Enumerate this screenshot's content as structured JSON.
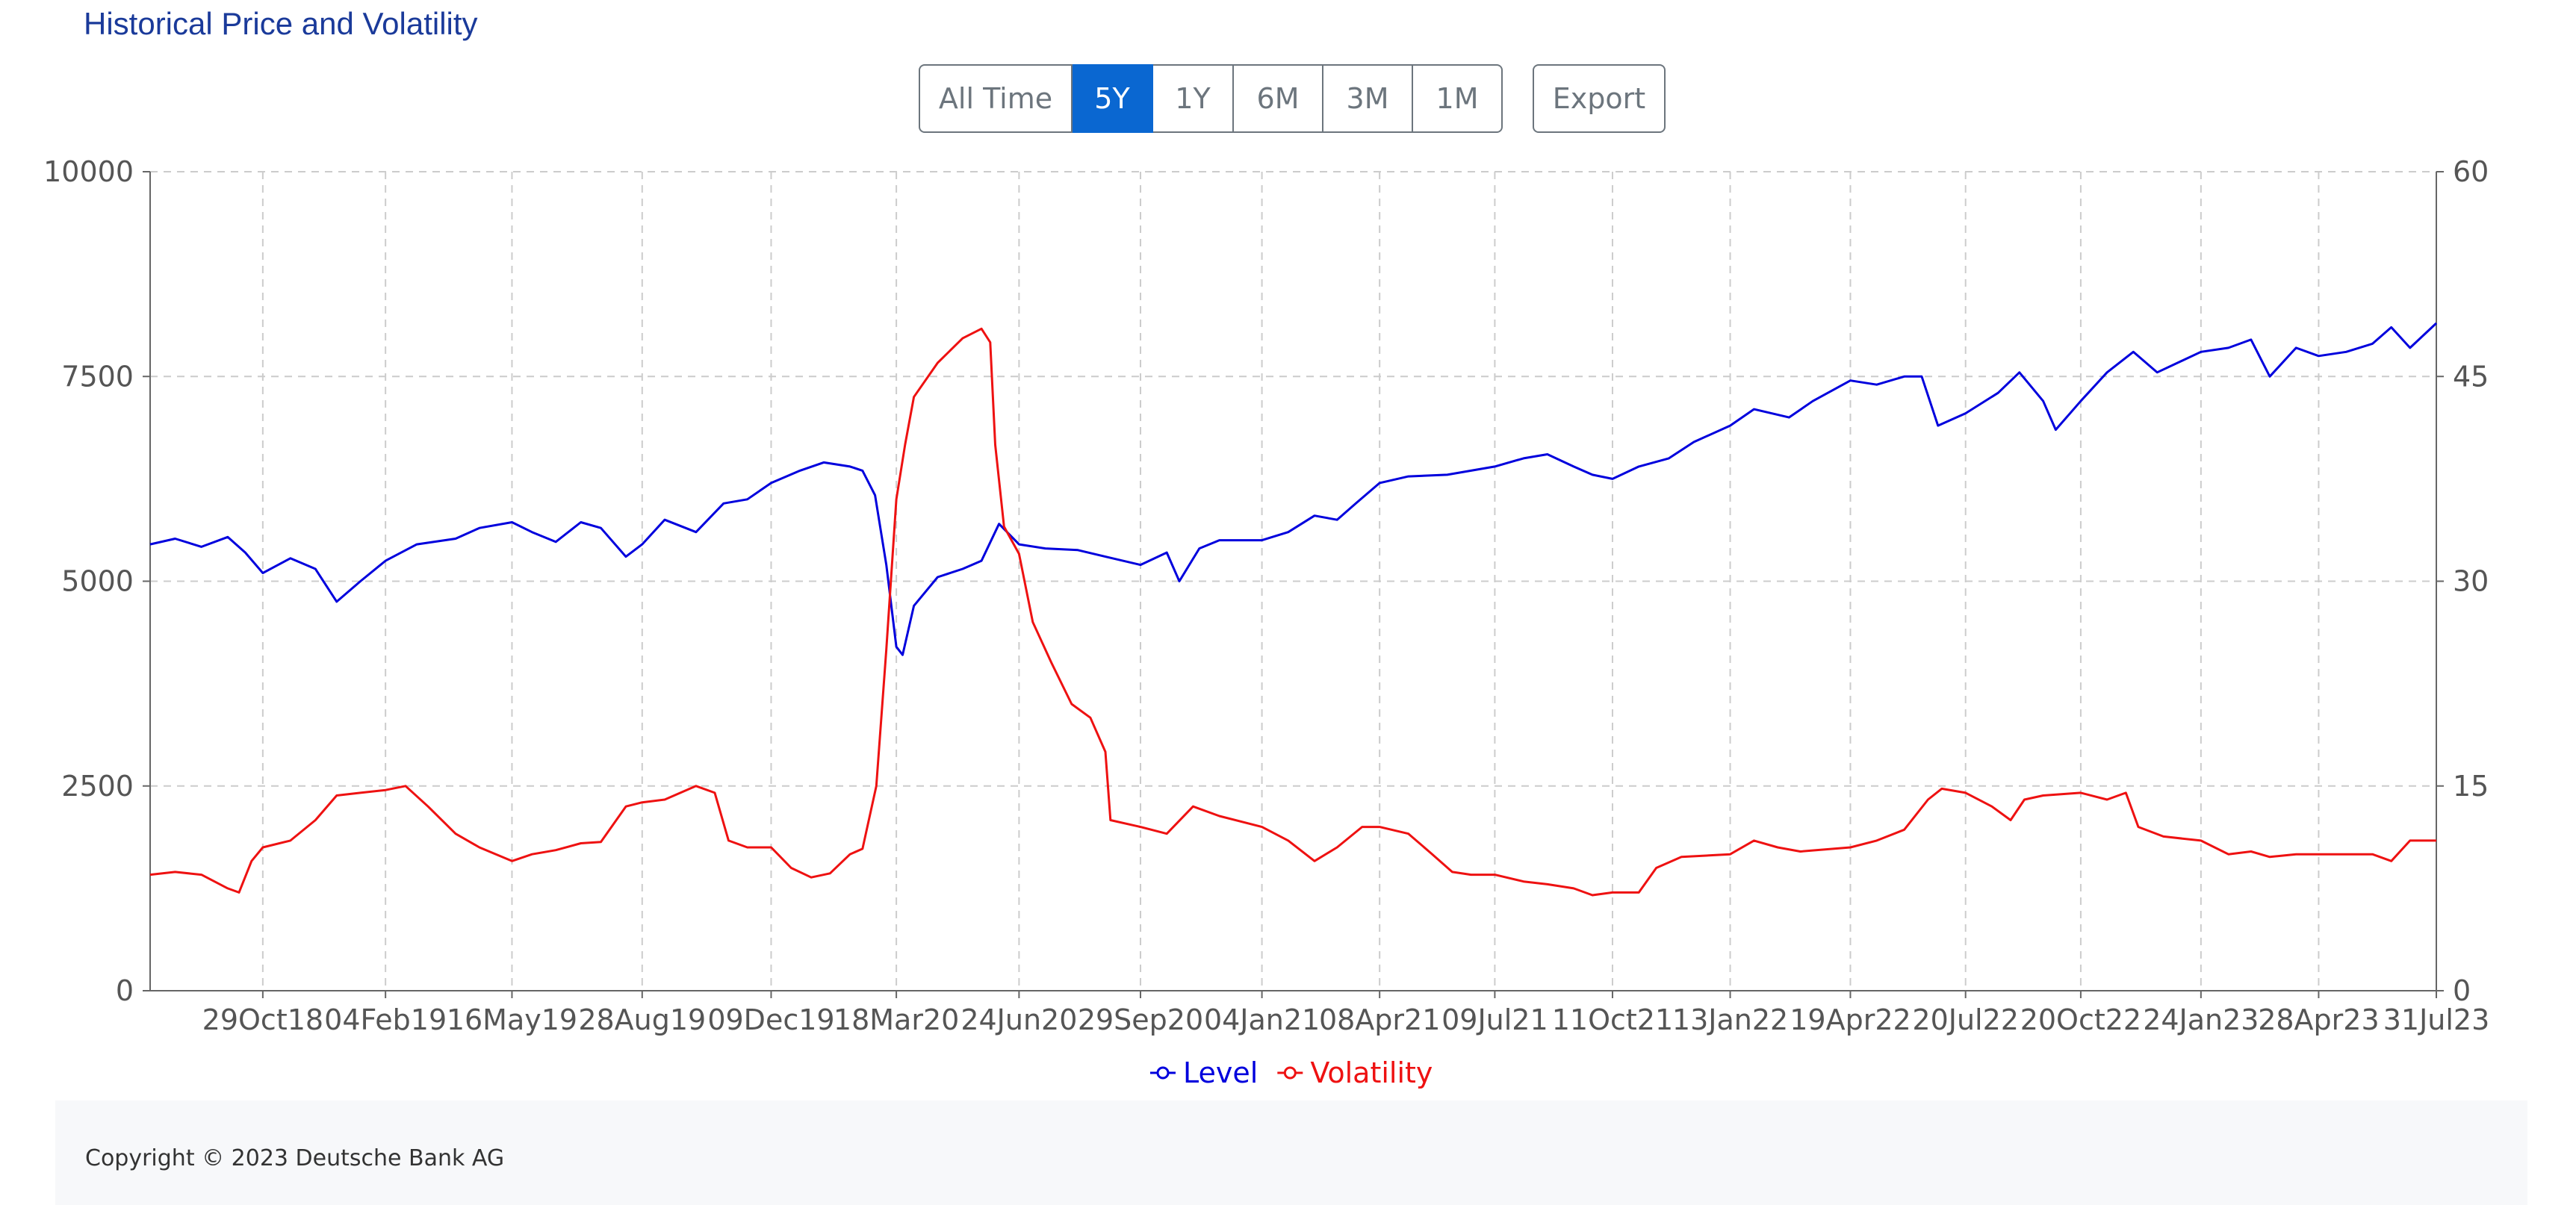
{
  "title": "Historical Price and Volatility",
  "range_buttons": [
    {
      "label": "All Time",
      "active": false
    },
    {
      "label": "5Y",
      "active": true
    },
    {
      "label": "1Y",
      "active": false
    },
    {
      "label": "6M",
      "active": false
    },
    {
      "label": "3M",
      "active": false
    },
    {
      "label": "1M",
      "active": false
    }
  ],
  "export_label": "Export",
  "copyright": "Copyright © 2023 Deutsche Bank AG",
  "colors": {
    "level": "#0000dd",
    "volatility": "#ee1111",
    "accent": "#0a67d1"
  },
  "chart_data": {
    "type": "line",
    "x_ticks": [
      "29Oct18",
      "04Feb19",
      "16May19",
      "28Aug19",
      "09Dec19",
      "18Mar20",
      "24Jun20",
      "29Sep20",
      "04Jan21",
      "08Apr21",
      "09Jul21",
      "11Oct21",
      "13Jan22",
      "19Apr22",
      "20Jul22",
      "20Oct22",
      "24Jan23",
      "28Apr23",
      "31Jul23"
    ],
    "x_range": [
      "2018-07-31",
      "2023-07-31"
    ],
    "y_left": {
      "ticks": [
        0,
        2500,
        5000,
        7500,
        10000
      ],
      "range": [
        0,
        10000
      ]
    },
    "y_right": {
      "ticks": [
        0,
        15,
        30,
        45,
        60
      ],
      "range": [
        0,
        60
      ]
    },
    "grid": true,
    "legend_position": "bottom-center",
    "series": [
      {
        "name": "Level",
        "axis": "left",
        "points": [
          [
            "2018-07-31",
            5450
          ],
          [
            "2018-08-20",
            5520
          ],
          [
            "2018-09-10",
            5420
          ],
          [
            "2018-10-01",
            5540
          ],
          [
            "2018-10-15",
            5350
          ],
          [
            "2018-10-29",
            5100
          ],
          [
            "2018-11-20",
            5280
          ],
          [
            "2018-12-10",
            5150
          ],
          [
            "2018-12-27",
            4750
          ],
          [
            "2019-01-15",
            5000
          ],
          [
            "2019-02-04",
            5250
          ],
          [
            "2019-03-01",
            5450
          ],
          [
            "2019-04-01",
            5520
          ],
          [
            "2019-04-20",
            5650
          ],
          [
            "2019-05-16",
            5720
          ],
          [
            "2019-06-01",
            5600
          ],
          [
            "2019-06-20",
            5480
          ],
          [
            "2019-07-10",
            5720
          ],
          [
            "2019-07-26",
            5650
          ],
          [
            "2019-08-15",
            5300
          ],
          [
            "2019-08-28",
            5450
          ],
          [
            "2019-09-15",
            5750
          ],
          [
            "2019-10-10",
            5600
          ],
          [
            "2019-11-01",
            5950
          ],
          [
            "2019-11-20",
            6000
          ],
          [
            "2019-12-09",
            6200
          ],
          [
            "2020-01-01",
            6350
          ],
          [
            "2020-01-20",
            6450
          ],
          [
            "2020-02-10",
            6400
          ],
          [
            "2020-02-20",
            6350
          ],
          [
            "2020-03-01",
            6050
          ],
          [
            "2020-03-10",
            5200
          ],
          [
            "2020-03-18",
            4200
          ],
          [
            "2020-03-23",
            4100
          ],
          [
            "2020-04-01",
            4700
          ],
          [
            "2020-04-20",
            5050
          ],
          [
            "2020-05-10",
            5150
          ],
          [
            "2020-05-25",
            5250
          ],
          [
            "2020-06-08",
            5700
          ],
          [
            "2020-06-24",
            5450
          ],
          [
            "2020-07-15",
            5400
          ],
          [
            "2020-08-10",
            5380
          ],
          [
            "2020-09-01",
            5300
          ],
          [
            "2020-09-29",
            5200
          ],
          [
            "2020-10-20",
            5350
          ],
          [
            "2020-10-30",
            5000
          ],
          [
            "2020-11-15",
            5400
          ],
          [
            "2020-12-01",
            5500
          ],
          [
            "2021-01-04",
            5500
          ],
          [
            "2021-01-25",
            5600
          ],
          [
            "2021-02-15",
            5800
          ],
          [
            "2021-03-05",
            5750
          ],
          [
            "2021-03-20",
            5950
          ],
          [
            "2021-04-08",
            6200
          ],
          [
            "2021-05-01",
            6280
          ],
          [
            "2021-06-01",
            6300
          ],
          [
            "2021-07-09",
            6400
          ],
          [
            "2021-08-01",
            6500
          ],
          [
            "2021-08-20",
            6550
          ],
          [
            "2021-09-10",
            6400
          ],
          [
            "2021-09-25",
            6300
          ],
          [
            "2021-10-11",
            6250
          ],
          [
            "2021-11-01",
            6400
          ],
          [
            "2021-11-25",
            6500
          ],
          [
            "2021-12-15",
            6700
          ],
          [
            "2022-01-13",
            6900
          ],
          [
            "2022-02-01",
            7100
          ],
          [
            "2022-03-01",
            7000
          ],
          [
            "2022-03-20",
            7200
          ],
          [
            "2022-04-19",
            7450
          ],
          [
            "2022-05-10",
            7400
          ],
          [
            "2022-06-01",
            7500
          ],
          [
            "2022-06-15",
            7500
          ],
          [
            "2022-06-28",
            6900
          ],
          [
            "2022-07-20",
            7050
          ],
          [
            "2022-08-15",
            7300
          ],
          [
            "2022-09-01",
            7550
          ],
          [
            "2022-09-20",
            7200
          ],
          [
            "2022-09-30",
            6850
          ],
          [
            "2022-10-20",
            7200
          ],
          [
            "2022-11-10",
            7550
          ],
          [
            "2022-12-01",
            7800
          ],
          [
            "2022-12-20",
            7550
          ],
          [
            "2023-01-24",
            7800
          ],
          [
            "2023-02-15",
            7850
          ],
          [
            "2023-03-05",
            7950
          ],
          [
            "2023-03-20",
            7500
          ],
          [
            "2023-04-10",
            7850
          ],
          [
            "2023-04-28",
            7750
          ],
          [
            "2023-05-20",
            7800
          ],
          [
            "2023-06-10",
            7900
          ],
          [
            "2023-06-25",
            8100
          ],
          [
            "2023-07-10",
            7850
          ],
          [
            "2023-07-31",
            8150
          ]
        ]
      },
      {
        "name": "Volatility",
        "axis": "right",
        "points": [
          [
            "2018-07-31",
            8.5
          ],
          [
            "2018-08-20",
            8.7
          ],
          [
            "2018-09-10",
            8.5
          ],
          [
            "2018-10-01",
            7.5
          ],
          [
            "2018-10-10",
            7.2
          ],
          [
            "2018-10-20",
            9.5
          ],
          [
            "2018-10-29",
            10.5
          ],
          [
            "2018-11-20",
            11.0
          ],
          [
            "2018-12-10",
            12.5
          ],
          [
            "2018-12-27",
            14.3
          ],
          [
            "2019-01-15",
            14.5
          ],
          [
            "2019-02-04",
            14.7
          ],
          [
            "2019-02-20",
            15.0
          ],
          [
            "2019-03-10",
            13.5
          ],
          [
            "2019-04-01",
            11.5
          ],
          [
            "2019-04-20",
            10.5
          ],
          [
            "2019-05-16",
            9.5
          ],
          [
            "2019-06-01",
            10.0
          ],
          [
            "2019-06-20",
            10.3
          ],
          [
            "2019-07-10",
            10.8
          ],
          [
            "2019-07-26",
            10.9
          ],
          [
            "2019-08-15",
            13.5
          ],
          [
            "2019-08-28",
            13.8
          ],
          [
            "2019-09-15",
            14.0
          ],
          [
            "2019-10-10",
            15.0
          ],
          [
            "2019-10-25",
            14.5
          ],
          [
            "2019-11-05",
            11.0
          ],
          [
            "2019-11-20",
            10.5
          ],
          [
            "2019-12-09",
            10.5
          ],
          [
            "2019-12-25",
            9.0
          ],
          [
            "2020-01-10",
            8.3
          ],
          [
            "2020-01-25",
            8.6
          ],
          [
            "2020-02-10",
            10.0
          ],
          [
            "2020-02-20",
            10.4
          ],
          [
            "2020-03-02",
            15.0
          ],
          [
            "2020-03-10",
            25.0
          ],
          [
            "2020-03-18",
            36.0
          ],
          [
            "2020-03-25",
            40.0
          ],
          [
            "2020-04-01",
            43.5
          ],
          [
            "2020-04-20",
            46.0
          ],
          [
            "2020-05-10",
            47.8
          ],
          [
            "2020-05-25",
            48.5
          ],
          [
            "2020-06-01",
            47.5
          ],
          [
            "2020-06-05",
            40.0
          ],
          [
            "2020-06-12",
            34.0
          ],
          [
            "2020-06-24",
            32.0
          ],
          [
            "2020-07-05",
            27.0
          ],
          [
            "2020-07-20",
            24.0
          ],
          [
            "2020-08-05",
            21.0
          ],
          [
            "2020-08-20",
            20.0
          ],
          [
            "2020-09-01",
            17.5
          ],
          [
            "2020-09-05",
            12.5
          ],
          [
            "2020-09-29",
            12.0
          ],
          [
            "2020-10-20",
            11.5
          ],
          [
            "2020-11-10",
            13.5
          ],
          [
            "2020-12-01",
            12.8
          ],
          [
            "2021-01-04",
            12.0
          ],
          [
            "2021-01-25",
            11.0
          ],
          [
            "2021-02-15",
            9.5
          ],
          [
            "2021-03-05",
            10.5
          ],
          [
            "2021-03-25",
            12.0
          ],
          [
            "2021-04-08",
            12.0
          ],
          [
            "2021-05-01",
            11.5
          ],
          [
            "2021-05-20",
            10.0
          ],
          [
            "2021-06-05",
            8.7
          ],
          [
            "2021-06-20",
            8.5
          ],
          [
            "2021-07-09",
            8.5
          ],
          [
            "2021-08-01",
            8.0
          ],
          [
            "2021-08-20",
            7.8
          ],
          [
            "2021-09-10",
            7.5
          ],
          [
            "2021-09-25",
            7.0
          ],
          [
            "2021-10-11",
            7.2
          ],
          [
            "2021-11-01",
            7.2
          ],
          [
            "2021-11-15",
            9.0
          ],
          [
            "2021-12-05",
            9.8
          ],
          [
            "2022-01-13",
            10.0
          ],
          [
            "2022-02-01",
            11.0
          ],
          [
            "2022-02-20",
            10.5
          ],
          [
            "2022-03-10",
            10.2
          ],
          [
            "2022-04-19",
            10.5
          ],
          [
            "2022-05-10",
            11.0
          ],
          [
            "2022-06-01",
            11.8
          ],
          [
            "2022-06-20",
            14.0
          ],
          [
            "2022-07-01",
            14.8
          ],
          [
            "2022-07-20",
            14.5
          ],
          [
            "2022-08-10",
            13.5
          ],
          [
            "2022-08-25",
            12.5
          ],
          [
            "2022-09-05",
            14.0
          ],
          [
            "2022-09-20",
            14.3
          ],
          [
            "2022-10-20",
            14.5
          ],
          [
            "2022-11-10",
            14.0
          ],
          [
            "2022-11-25",
            14.5
          ],
          [
            "2022-12-05",
            12.0
          ],
          [
            "2022-12-25",
            11.3
          ],
          [
            "2023-01-24",
            11.0
          ],
          [
            "2023-02-15",
            10.0
          ],
          [
            "2023-03-05",
            10.2
          ],
          [
            "2023-03-20",
            9.8
          ],
          [
            "2023-04-10",
            10.0
          ],
          [
            "2023-04-28",
            10.0
          ],
          [
            "2023-05-20",
            10.0
          ],
          [
            "2023-06-10",
            10.0
          ],
          [
            "2023-06-25",
            9.5
          ],
          [
            "2023-07-10",
            11.0
          ],
          [
            "2023-07-31",
            11.0
          ]
        ]
      }
    ]
  }
}
